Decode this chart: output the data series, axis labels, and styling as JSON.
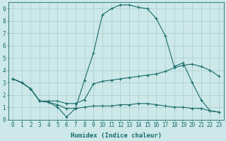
{
  "xlabel": "Humidex (Indice chaleur)",
  "ylabel": "",
  "bg_color": "#cce8e8",
  "line_color": "#1a6b6b",
  "grid_color": "#b0d0d0",
  "xlim": [
    -0.5,
    23.5
  ],
  "ylim": [
    0,
    9.5
  ],
  "xticks": [
    0,
    1,
    2,
    3,
    4,
    5,
    6,
    7,
    8,
    9,
    10,
    11,
    12,
    13,
    14,
    15,
    16,
    17,
    18,
    19,
    20,
    21,
    22,
    23
  ],
  "yticks": [
    0,
    1,
    2,
    3,
    4,
    5,
    6,
    7,
    8,
    9
  ],
  "line1_x": [
    0,
    1,
    2,
    3,
    4,
    5,
    6,
    7,
    8,
    9,
    10,
    11,
    12,
    13,
    14,
    15,
    16,
    17,
    18,
    19,
    20,
    21,
    22,
    23
  ],
  "line1_y": [
    3.3,
    3.0,
    2.5,
    1.5,
    1.4,
    1.0,
    0.2,
    0.9,
    3.2,
    5.4,
    8.5,
    9.0,
    9.3,
    9.3,
    9.1,
    9.0,
    8.2,
    6.8,
    4.3,
    4.6,
    3.0,
    1.6,
    0.7,
    0.6
  ],
  "line2_x": [
    0,
    1,
    2,
    3,
    4,
    5,
    6,
    7,
    8,
    9,
    10,
    11,
    12,
    13,
    14,
    15,
    16,
    17,
    18,
    19,
    20,
    21,
    22,
    23
  ],
  "line2_y": [
    3.3,
    3.0,
    2.5,
    1.5,
    1.5,
    1.5,
    1.3,
    1.3,
    1.6,
    2.9,
    3.1,
    3.2,
    3.3,
    3.4,
    3.5,
    3.6,
    3.7,
    3.9,
    4.2,
    4.4,
    4.5,
    4.3,
    4.0,
    3.5
  ],
  "line3_x": [
    0,
    1,
    2,
    3,
    4,
    5,
    6,
    7,
    8,
    9,
    10,
    11,
    12,
    13,
    14,
    15,
    16,
    17,
    18,
    19,
    20,
    21,
    22,
    23
  ],
  "line3_y": [
    3.3,
    3.0,
    2.5,
    1.5,
    1.4,
    1.2,
    0.9,
    0.9,
    1.0,
    1.1,
    1.1,
    1.1,
    1.2,
    1.2,
    1.3,
    1.3,
    1.2,
    1.1,
    1.0,
    1.0,
    0.9,
    0.9,
    0.7,
    0.6
  ],
  "tick_fontsize": 5.5,
  "xlabel_fontsize": 6.5
}
